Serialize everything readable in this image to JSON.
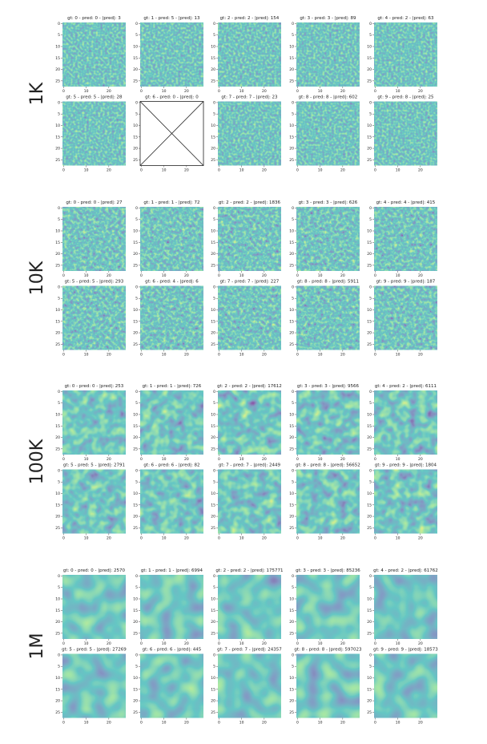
{
  "axes": {
    "xlim": [
      -0.5,
      27.5
    ],
    "ylim": [
      -0.5,
      27.5
    ],
    "xticks": [
      0,
      10,
      20
    ],
    "yticks": [
      0,
      5,
      10,
      15,
      20,
      25
    ]
  },
  "groups": [
    {
      "label": "1K",
      "panels": [
        {
          "title": "gt: 0  -  pred: 0  - |pred|: 3"
        },
        {
          "title": "gt: 1  -  pred: 5  - |pred|: 13"
        },
        {
          "title": "gt: 2  -  pred: 2  - |pred|: 154"
        },
        {
          "title": "gt: 3  -  pred: 3  - |pred|: 89"
        },
        {
          "title": "gt: 4  -  pred: 2  - |pred|: 63"
        },
        {
          "title": "gt: 5  -  pred: 5  - |pred|: 28"
        },
        {
          "title": "gt: 6  -  pred: 0  - |pred|: 0",
          "empty": true
        },
        {
          "title": "gt: 7  -  pred: 7  - |pred|: 23"
        },
        {
          "title": "gt: 8  -  pred: 8  - |pred|: 602"
        },
        {
          "title": "gt: 9  -  pred: 8  - |pred|: 25"
        }
      ]
    },
    {
      "label": "10K",
      "panels": [
        {
          "title": "gt: 0  -  pred: 0  - |pred|: 27"
        },
        {
          "title": "gt: 1  -  pred: 1  - |pred|: 72"
        },
        {
          "title": "gt: 2  -  pred: 2  - |pred|: 1836"
        },
        {
          "title": "gt: 3  -  pred: 3  - |pred|: 626"
        },
        {
          "title": "gt: 4  -  pred: 4  - |pred|: 415"
        },
        {
          "title": "gt: 5  -  pred: 5  - |pred|: 293"
        },
        {
          "title": "gt: 6  -  pred: 4  - |pred|: 6"
        },
        {
          "title": "gt: 7  -  pred: 7  - |pred|: 227"
        },
        {
          "title": "gt: 8  -  pred: 8  - |pred|: 5911"
        },
        {
          "title": "gt: 9  -  pred: 9  - |pred|: 187"
        }
      ]
    },
    {
      "label": "100K",
      "panels": [
        {
          "title": "gt: 0  -  pred: 0  - |pred|: 253"
        },
        {
          "title": "gt: 1  -  pred: 1  - |pred|: 726"
        },
        {
          "title": "gt: 2  -  pred: 2  - |pred|: 17612"
        },
        {
          "title": "gt: 3  -  pred: 3  - |pred|: 9566"
        },
        {
          "title": "gt: 4  -  pred: 2  - |pred|: 6111"
        },
        {
          "title": "gt: 5  -  pred: 5  - |pred|: 2791"
        },
        {
          "title": "gt: 6  -  pred: 6  - |pred|: 82"
        },
        {
          "title": "gt: 7  -  pred: 7  - |pred|: 2449"
        },
        {
          "title": "gt: 8  -  pred: 8  - |pred|: 56652"
        },
        {
          "title": "gt: 9  -  pred: 9  - |pred|: 1804"
        }
      ]
    },
    {
      "label": "1M",
      "panels": [
        {
          "title": "gt: 0  -  pred: 0  - |pred|: 2570"
        },
        {
          "title": "gt: 1  -  pred: 1  - |pred|: 6994"
        },
        {
          "title": "gt: 2  -  pred: 2  - |pred|: 175771"
        },
        {
          "title": "gt: 3  -  pred: 3  - |pred|: 85236"
        },
        {
          "title": "gt: 4  -  pred: 2  - |pred|: 61762"
        },
        {
          "title": "gt: 5  -  pred: 5  - |pred|: 27269"
        },
        {
          "title": "gt: 6  -  pred: 6  - |pred|: 445"
        },
        {
          "title": "gt: 7  -  pred: 7  - |pred|: 24357"
        },
        {
          "title": "gt: 8  -  pred: 8  - |pred|: 597023"
        },
        {
          "title": "gt: 9  -  pred: 9  - |pred|: 18573"
        }
      ]
    }
  ]
}
